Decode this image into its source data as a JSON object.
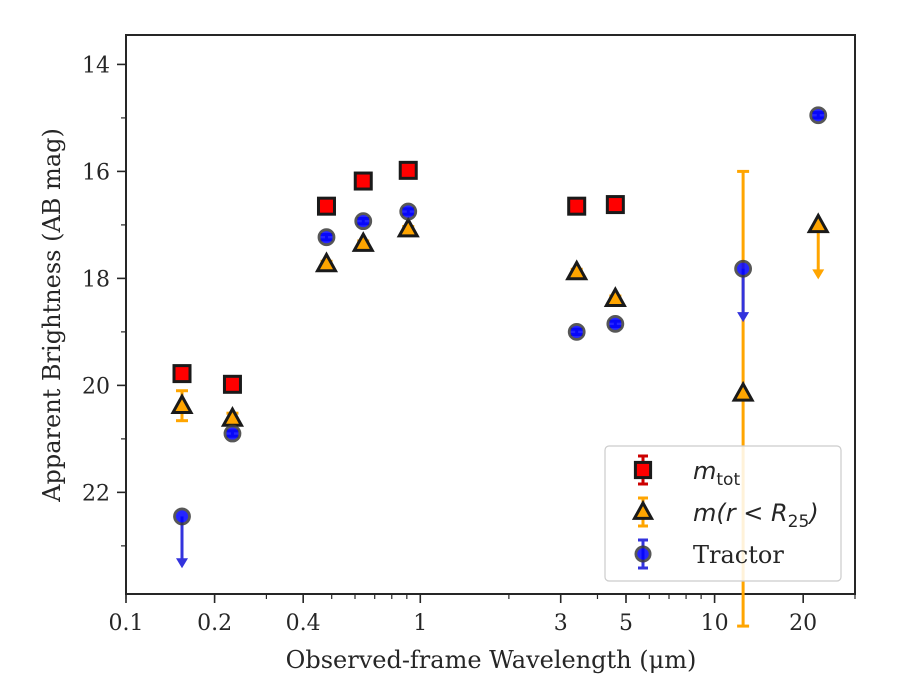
{
  "chart_data": {
    "type": "scatter",
    "title": "",
    "xlabel": "Observed-frame Wavelength (μm)",
    "ylabel": "Apparent Brightness (AB mag)",
    "xscale": "log",
    "xlim": [
      0.1,
      30
    ],
    "ylim": [
      23.9,
      13.45
    ],
    "y_inverted": true,
    "x_ticks": [
      0.1,
      0.2,
      0.4,
      1,
      3,
      5,
      10,
      20
    ],
    "x_tick_labels": [
      "0.1",
      "0.2",
      "0.4",
      "1",
      "3",
      "5",
      "10",
      "20"
    ],
    "y_ticks": [
      14,
      16,
      18,
      20,
      22
    ],
    "y_tick_labels": [
      "14",
      "16",
      "18",
      "20",
      "22"
    ],
    "legend_position": "lower-right",
    "series": [
      {
        "key": "mtot",
        "legend_main": "m",
        "legend_sub": "tot",
        "legend_rest": "",
        "marker": "square",
        "color": "#ff0000",
        "errcolor": "#cc0000",
        "points": [
          {
            "x": 0.155,
            "y": 19.78,
            "err": 0.1
          },
          {
            "x": 0.23,
            "y": 19.98,
            "err": 0.05
          },
          {
            "x": 0.48,
            "y": 16.65,
            "err": 0.05
          },
          {
            "x": 0.64,
            "y": 16.18,
            "err": 0.05
          },
          {
            "x": 0.91,
            "y": 15.98,
            "err": 0.05
          },
          {
            "x": 3.4,
            "y": 16.65,
            "err": 0.05
          },
          {
            "x": 4.6,
            "y": 16.62,
            "err": 0.05
          }
        ]
      },
      {
        "key": "mr25",
        "legend_main": "m",
        "legend_sub": "",
        "legend_rest": "(r < R",
        "legend_rest_sub": "25",
        "legend_close": ")",
        "marker": "triangle",
        "color": "#ffa500",
        "errcolor": "#ffa500",
        "points": [
          {
            "x": 0.155,
            "y": 20.38,
            "err": 0.28
          },
          {
            "x": 0.23,
            "y": 20.62,
            "err": 0.1
          },
          {
            "x": 0.48,
            "y": 17.73,
            "err": 0.05
          },
          {
            "x": 0.64,
            "y": 17.35,
            "err": 0.05
          },
          {
            "x": 0.91,
            "y": 17.08,
            "err": 0.05
          },
          {
            "x": 3.4,
            "y": 17.88,
            "err": 0.05
          },
          {
            "x": 4.6,
            "y": 18.38,
            "err": 0.05
          },
          {
            "x": 12.5,
            "y": 20.15,
            "err_low": 16.0,
            "err_high": 24.5
          },
          {
            "x": 22.5,
            "y": 17.0,
            "upper_limit": true,
            "arrow_to": 18.0
          }
        ]
      },
      {
        "key": "tractor",
        "legend_main": "Tractor",
        "marker": "circle",
        "color": "#0000ff",
        "errcolor": "#3333dd",
        "points": [
          {
            "x": 0.155,
            "y": 22.45,
            "upper_limit": true,
            "arrow_to": 23.4
          },
          {
            "x": 0.23,
            "y": 20.9,
            "err": 0.05
          },
          {
            "x": 0.48,
            "y": 17.23,
            "err": 0.05
          },
          {
            "x": 0.64,
            "y": 16.93,
            "err": 0.05
          },
          {
            "x": 0.91,
            "y": 16.75,
            "err": 0.05
          },
          {
            "x": 3.4,
            "y": 19.0,
            "err": 0.05
          },
          {
            "x": 4.6,
            "y": 18.85,
            "err": 0.05
          },
          {
            "x": 12.5,
            "y": 17.82,
            "upper_limit": true,
            "arrow_to": 18.8
          },
          {
            "x": 22.5,
            "y": 14.95,
            "err": 0.05
          }
        ]
      }
    ]
  }
}
